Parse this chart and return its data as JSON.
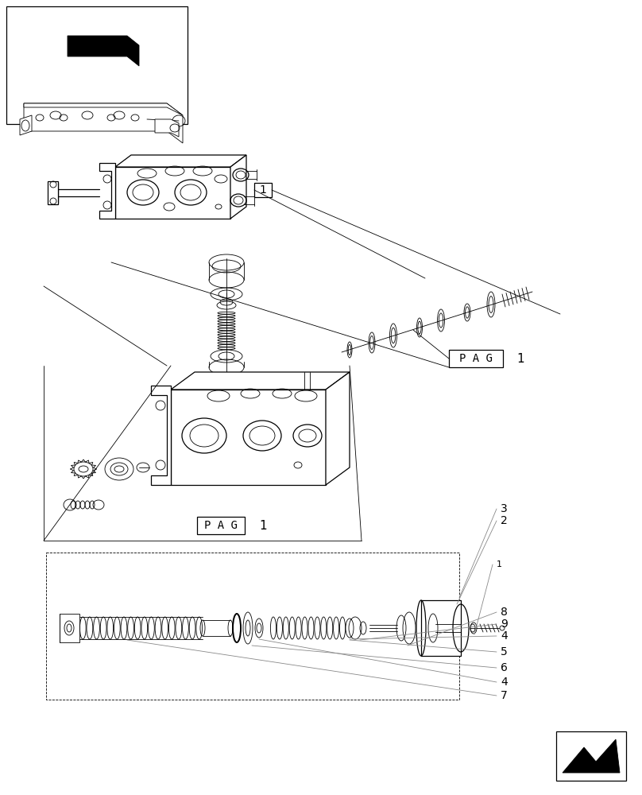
{
  "bg_color": "#ffffff",
  "lc": "#000000",
  "gray": "#999999",
  "fig_w": 8.08,
  "fig_h": 10.0,
  "pag_label": "P A G",
  "pag_num": "1"
}
